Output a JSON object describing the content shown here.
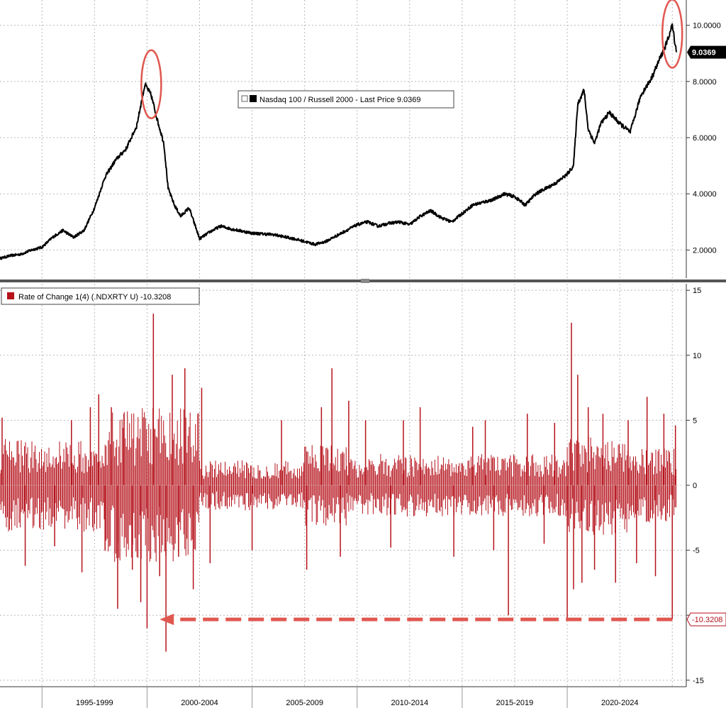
{
  "chart_data": [
    {
      "type": "line",
      "legend_label": "Nasdaq 100 / Russell 2000 - Last Price 9.0369",
      "legend_position": "top-center",
      "series": [
        {
          "name": "Nasdaq 100 / Russell 2000",
          "color": "#000000",
          "x": [
            1993.0,
            1993.5,
            1994.0,
            1994.5,
            1995.0,
            1995.5,
            1996.0,
            1996.5,
            1997.0,
            1997.5,
            1998.0,
            1998.5,
            1999.0,
            1999.5,
            1999.9,
            2000.2,
            2000.5,
            2000.8,
            2001.0,
            2001.3,
            2001.6,
            2002.0,
            2002.5,
            2003.0,
            2003.5,
            2004.0,
            2005.0,
            2006.0,
            2007.0,
            2007.5,
            2008.0,
            2008.5,
            2009.0,
            2009.5,
            2010.0,
            2010.5,
            2011.0,
            2011.5,
            2012.0,
            2012.5,
            2013.0,
            2013.5,
            2014.0,
            2014.5,
            2015.0,
            2015.5,
            2016.0,
            2016.5,
            2017.0,
            2017.5,
            2018.0,
            2018.5,
            2019.0,
            2019.5,
            2020.0,
            2020.3,
            2020.5,
            2020.8,
            2021.0,
            2021.3,
            2021.6,
            2022.0,
            2022.5,
            2023.0,
            2023.5,
            2024.0,
            2024.4,
            2024.7,
            2025.0,
            2025.2
          ],
          "y": [
            1.7,
            1.8,
            1.85,
            2.0,
            2.1,
            2.45,
            2.7,
            2.45,
            2.7,
            3.5,
            4.6,
            5.2,
            5.6,
            6.4,
            7.9,
            7.5,
            6.6,
            5.8,
            4.2,
            3.6,
            3.2,
            3.5,
            2.4,
            2.65,
            2.85,
            2.75,
            2.6,
            2.55,
            2.4,
            2.3,
            2.2,
            2.3,
            2.5,
            2.7,
            2.9,
            3.0,
            2.85,
            2.95,
            3.0,
            2.9,
            3.2,
            3.4,
            3.15,
            3.0,
            3.3,
            3.6,
            3.7,
            3.8,
            4.0,
            3.9,
            3.6,
            4.0,
            4.2,
            4.4,
            4.7,
            5.0,
            7.2,
            7.7,
            6.3,
            5.8,
            6.5,
            6.9,
            6.5,
            6.2,
            7.5,
            8.1,
            8.8,
            9.3,
            10.0,
            9.04
          ]
        }
      ],
      "last_value_label": "9.0369",
      "xlim": [
        1993.0,
        2025.6
      ],
      "ylim": [
        1.0,
        10.9
      ],
      "yticks": [
        2,
        4,
        6,
        8,
        10
      ],
      "ytick_labels": [
        "2.0000",
        "4.0000",
        "6.0000",
        "8.0000",
        "10.0000"
      ],
      "grid": true,
      "annotations": [
        {
          "type": "circle",
          "x": 2000.2,
          "y": 7.9,
          "color": "#e0574f"
        },
        {
          "type": "circle",
          "x": 2025.0,
          "y": 9.7,
          "color": "#e0574f"
        }
      ]
    },
    {
      "type": "bar",
      "legend_label": "Rate of Change 1(4) (.NDXRTY U) -10.3208",
      "legend_position": "top-left",
      "series": [
        {
          "name": "Rate of Change 1(4) (.NDXRTY U)",
          "color": "#b5121b",
          "spike_x": [
            1993.1,
            1994.2,
            1995.6,
            1996.4,
            1996.9,
            1997.3,
            1997.7,
            1998.0,
            1998.3,
            1998.6,
            1998.9,
            1999.3,
            1999.7,
            2000.0,
            2000.3,
            2000.6,
            2000.9,
            2001.2,
            2001.5,
            2001.8,
            2002.2,
            2002.6,
            2003.0,
            2005.0,
            2006.4,
            2007.6,
            2008.3,
            2008.8,
            2009.2,
            2009.6,
            2010.4,
            2011.6,
            2012.2,
            2013.0,
            2014.6,
            2015.5,
            2016.1,
            2016.5,
            2017.2,
            2018.1,
            2018.9,
            2019.4,
            2020.0,
            2020.2,
            2020.3,
            2020.5,
            2020.7,
            2021.0,
            2021.3,
            2021.7,
            2022.3,
            2022.9,
            2023.3,
            2023.8,
            2024.2,
            2024.6,
            2025.0,
            2025.15
          ],
          "spike_y": [
            5.2,
            -6.2,
            -4.7,
            5.0,
            -6.7,
            6.0,
            7.0,
            -5.0,
            6.0,
            -9.5,
            5.5,
            -6.5,
            -9.0,
            -11.0,
            13.2,
            -7.0,
            -12.8,
            8.5,
            -5.5,
            9.0,
            -8.0,
            7.5,
            -6.0,
            -5.0,
            5.0,
            -6.5,
            6.0,
            9.0,
            -5.5,
            6.5,
            5.0,
            -4.8,
            5.0,
            6.0,
            -5.5,
            4.5,
            5.0,
            -5.0,
            -10.0,
            5.5,
            -4.5,
            4.8,
            -10.3,
            12.5,
            -8.0,
            8.5,
            -7.5,
            6.0,
            -6.5,
            5.5,
            -7.5,
            5.0,
            -6.0,
            6.8,
            -7.0,
            5.5,
            -10.32,
            4.6
          ],
          "band": [
            {
              "x_from": 1993.0,
              "x_to": 1998.0,
              "amplitude": 3.0
            },
            {
              "x_from": 1998.0,
              "x_to": 2002.5,
              "amplitude": 5.0
            },
            {
              "x_from": 2002.5,
              "x_to": 2007.5,
              "amplitude": 1.6
            },
            {
              "x_from": 2007.5,
              "x_to": 2009.5,
              "amplitude": 2.6
            },
            {
              "x_from": 2009.5,
              "x_to": 2020.0,
              "amplitude": 2.0
            },
            {
              "x_from": 2020.0,
              "x_to": 2023.0,
              "amplitude": 3.2
            },
            {
              "x_from": 2023.0,
              "x_to": 2025.2,
              "amplitude": 2.4
            }
          ]
        }
      ],
      "last_value_label": "-10.3208",
      "xlim": [
        1993.0,
        2025.6
      ],
      "ylim": [
        -15.5,
        15.5
      ],
      "yticks": [
        -15,
        -10,
        -5,
        0,
        5,
        10,
        15
      ],
      "ytick_labels": [
        "-15",
        "-10",
        "-5",
        "0",
        "5",
        "10",
        "15"
      ],
      "hidden_tick_labels": [
        "-10"
      ],
      "grid": true,
      "annotations": [
        {
          "type": "dashed-arrow",
          "from_x": 2025.0,
          "to_x": 2000.6,
          "y": -10.3208,
          "color": "#e0574f"
        }
      ]
    }
  ],
  "x_axis": {
    "period_labels": [
      "1995-1999",
      "2000-2004",
      "2005-2009",
      "2010-2014",
      "2015-2019",
      "2020-2024"
    ],
    "period_ranges": [
      [
        1995,
        2000
      ],
      [
        2000,
        2005
      ],
      [
        2005,
        2010
      ],
      [
        2010,
        2015
      ],
      [
        2015,
        2020
      ],
      [
        2020,
        2025
      ]
    ],
    "gridlines": [
      1995,
      1997.5,
      2000,
      2002.5,
      2005,
      2007.5,
      2010,
      2012.5,
      2015,
      2017.5,
      2020,
      2022.5,
      2025
    ]
  }
}
